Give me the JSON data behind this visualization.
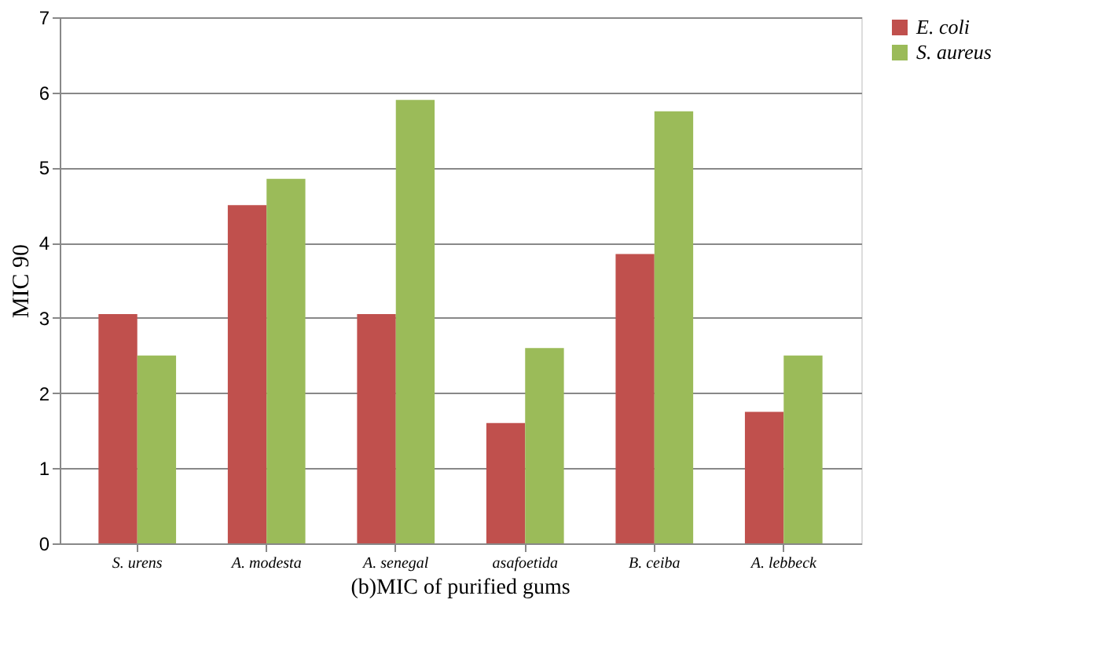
{
  "chart_data": {
    "type": "bar",
    "ylabel": "MIC 90",
    "categories": [
      "S. urens",
      "A. modesta",
      "A. senegal",
      "asafoetida",
      "B. ceiba",
      "A. lebbeck"
    ],
    "series": [
      {
        "name": "E. coli",
        "color": "#c0504d",
        "values": [
          3.05,
          4.5,
          3.05,
          1.6,
          3.85,
          1.75
        ]
      },
      {
        "name": "S. aureus",
        "color": "#9bbb59",
        "values": [
          2.5,
          4.85,
          5.9,
          2.6,
          5.75,
          2.5
        ]
      }
    ],
    "ylim": [
      0,
      7
    ],
    "yticks": [
      0,
      1,
      2,
      3,
      4,
      5,
      6,
      7
    ],
    "grid": "y",
    "legend": "right",
    "annotations": [
      "(b)MIC of purified gums"
    ]
  }
}
